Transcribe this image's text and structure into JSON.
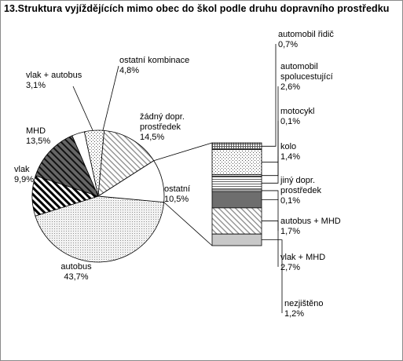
{
  "chart_data": {
    "type": "pie",
    "title": "13.Struktura vyjíždějících mimo obec do škol podle druhu dopravního prostředku",
    "pie_slices": [
      {
        "label": "autobus",
        "value": 43.7,
        "value_label": "43,7%",
        "fill": "fine-dots"
      },
      {
        "label": "vlak",
        "value": 9.9,
        "value_label": "9,9%",
        "fill": "diag-white"
      },
      {
        "label": "MHD",
        "value": 13.5,
        "value_label": "13,5%",
        "fill": "diag-dark"
      },
      {
        "label": "vlak + autobus",
        "value": 3.1,
        "value_label": "3,1%",
        "fill": "white"
      },
      {
        "label": "ostatní kombinace",
        "value": 4.8,
        "value_label": "4,8%",
        "fill": "sparse-dots"
      },
      {
        "label": "žádný dopr. prostředek",
        "value": 14.5,
        "value_label": "14,5%",
        "fill": "diag-light"
      },
      {
        "label": "ostatní",
        "value": 10.5,
        "value_label": "10,5%",
        "fill": "white"
      }
    ],
    "breakdown_of": "ostatní",
    "bar_segments": [
      {
        "label": "automobil řidič",
        "value": 0.7,
        "value_label": "0,7%",
        "fill": "grid"
      },
      {
        "label": "automobil spolucestující",
        "value": 2.6,
        "value_label": "2,6%",
        "fill": "sparse-dots"
      },
      {
        "label": "motocykl",
        "value": 0.1,
        "value_label": "0,1%",
        "fill": "white"
      },
      {
        "label": "kolo",
        "value": 1.4,
        "value_label": "1,4%",
        "fill": "h-lines"
      },
      {
        "label": "jiný dopr. prostředek",
        "value": 0.1,
        "value_label": "0,1%",
        "fill": "white"
      },
      {
        "label": "autobus + MHD",
        "value": 1.7,
        "value_label": "1,7%",
        "fill": "dark-grey"
      },
      {
        "label": "vlak + MHD",
        "value": 2.7,
        "value_label": "2,7%",
        "fill": "diag-light"
      },
      {
        "label": "nezjištěno",
        "value": 1.2,
        "value_label": "1,2%",
        "fill": "light-grey"
      }
    ]
  }
}
